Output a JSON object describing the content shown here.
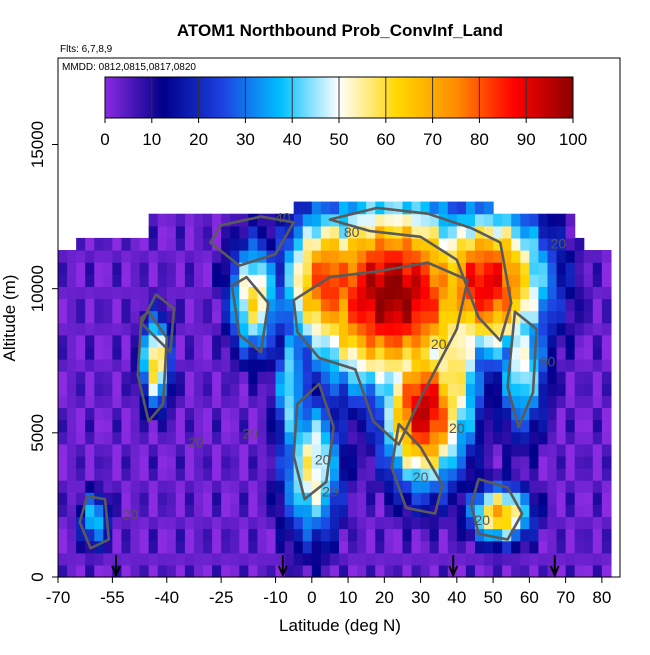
{
  "chart_data": {
    "type": "heatmap",
    "title": "ATOM1 Northbound Prob_ConvInf_Land",
    "flights_label": "Flts: 6,7,8,9",
    "dates_label": "MMDD: 0812,0815,0817,0820",
    "xlabel": "Latitude (deg N)",
    "ylabel": "Altitude (m)",
    "xlim": [
      -70,
      85
    ],
    "ylim": [
      0,
      18000
    ],
    "x_ticks": [
      -70,
      -55,
      -40,
      -25,
      -10,
      0,
      10,
      20,
      30,
      40,
      50,
      60,
      70,
      80
    ],
    "y_ticks": [
      0,
      5000,
      10000,
      15000
    ],
    "colorbar_ticks": [
      0,
      10,
      20,
      30,
      40,
      50,
      60,
      70,
      80,
      90,
      100
    ],
    "colorbar_range": [
      0,
      100
    ],
    "colormap": [
      "#8a2be2",
      "#00008b",
      "#1e40e0",
      "#00bfff",
      "#ffffff",
      "#ffd700",
      "#ff8c00",
      "#ff0000",
      "#8b0000"
    ],
    "contour_levels": [
      20,
      40,
      60,
      80
    ],
    "contour_labels": [
      {
        "text": "40",
        "x": -8,
        "y": 12300
      },
      {
        "text": "80",
        "x": 11,
        "y": 11800
      },
      {
        "text": "20",
        "x": 68,
        "y": 11400
      },
      {
        "text": "60",
        "x": 65,
        "y": 7300
      },
      {
        "text": "20",
        "x": -32,
        "y": 4500
      },
      {
        "text": "20",
        "x": -50,
        "y": 2000
      },
      {
        "text": "20",
        "x": -17,
        "y": 4800
      },
      {
        "text": "20",
        "x": 3,
        "y": 3900
      },
      {
        "text": "20",
        "x": 5,
        "y": 2800
      },
      {
        "text": "20",
        "x": 30,
        "y": 3300
      },
      {
        "text": "20",
        "x": 40,
        "y": 5000
      },
      {
        "text": "20",
        "x": 47,
        "y": 1800
      },
      {
        "text": "20",
        "x": 35,
        "y": 7900
      }
    ],
    "flight_markers_lat": [
      -54,
      -8,
      39,
      67
    ],
    "grid": false
  }
}
